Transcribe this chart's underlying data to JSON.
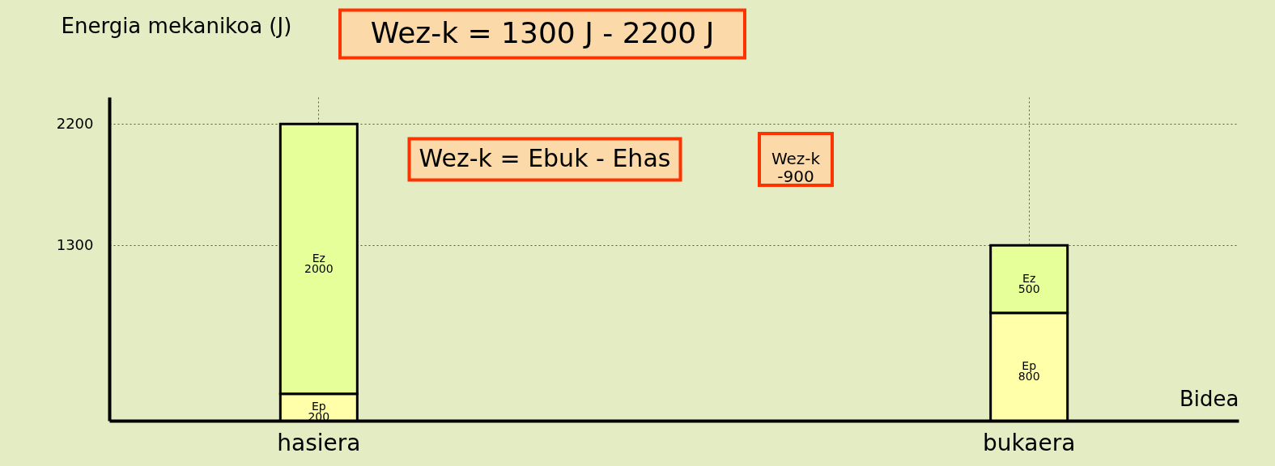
{
  "chart_data": {
    "type": "bar",
    "stacked": true,
    "categories": [
      "hasiera",
      "bukaera"
    ],
    "series": [
      {
        "name": "Ep",
        "color": "#ffffaa",
        "values": [
          200,
          800
        ]
      },
      {
        "name": "Ez",
        "color": "#e6ff99",
        "values": [
          2000,
          500
        ]
      }
    ],
    "xlabel": "Bidea",
    "ylabel": "Energia mekanikoa (J)",
    "ylim": [
      0,
      2400
    ],
    "yticks": [
      1300,
      2200
    ],
    "grid": true,
    "legend": false,
    "data_labels": true,
    "annotations": [
      "Wez-k = 1300 J - 2200 J",
      "Wez-k = Ebuk - Ehas",
      "Wez-k\n-900"
    ]
  }
}
